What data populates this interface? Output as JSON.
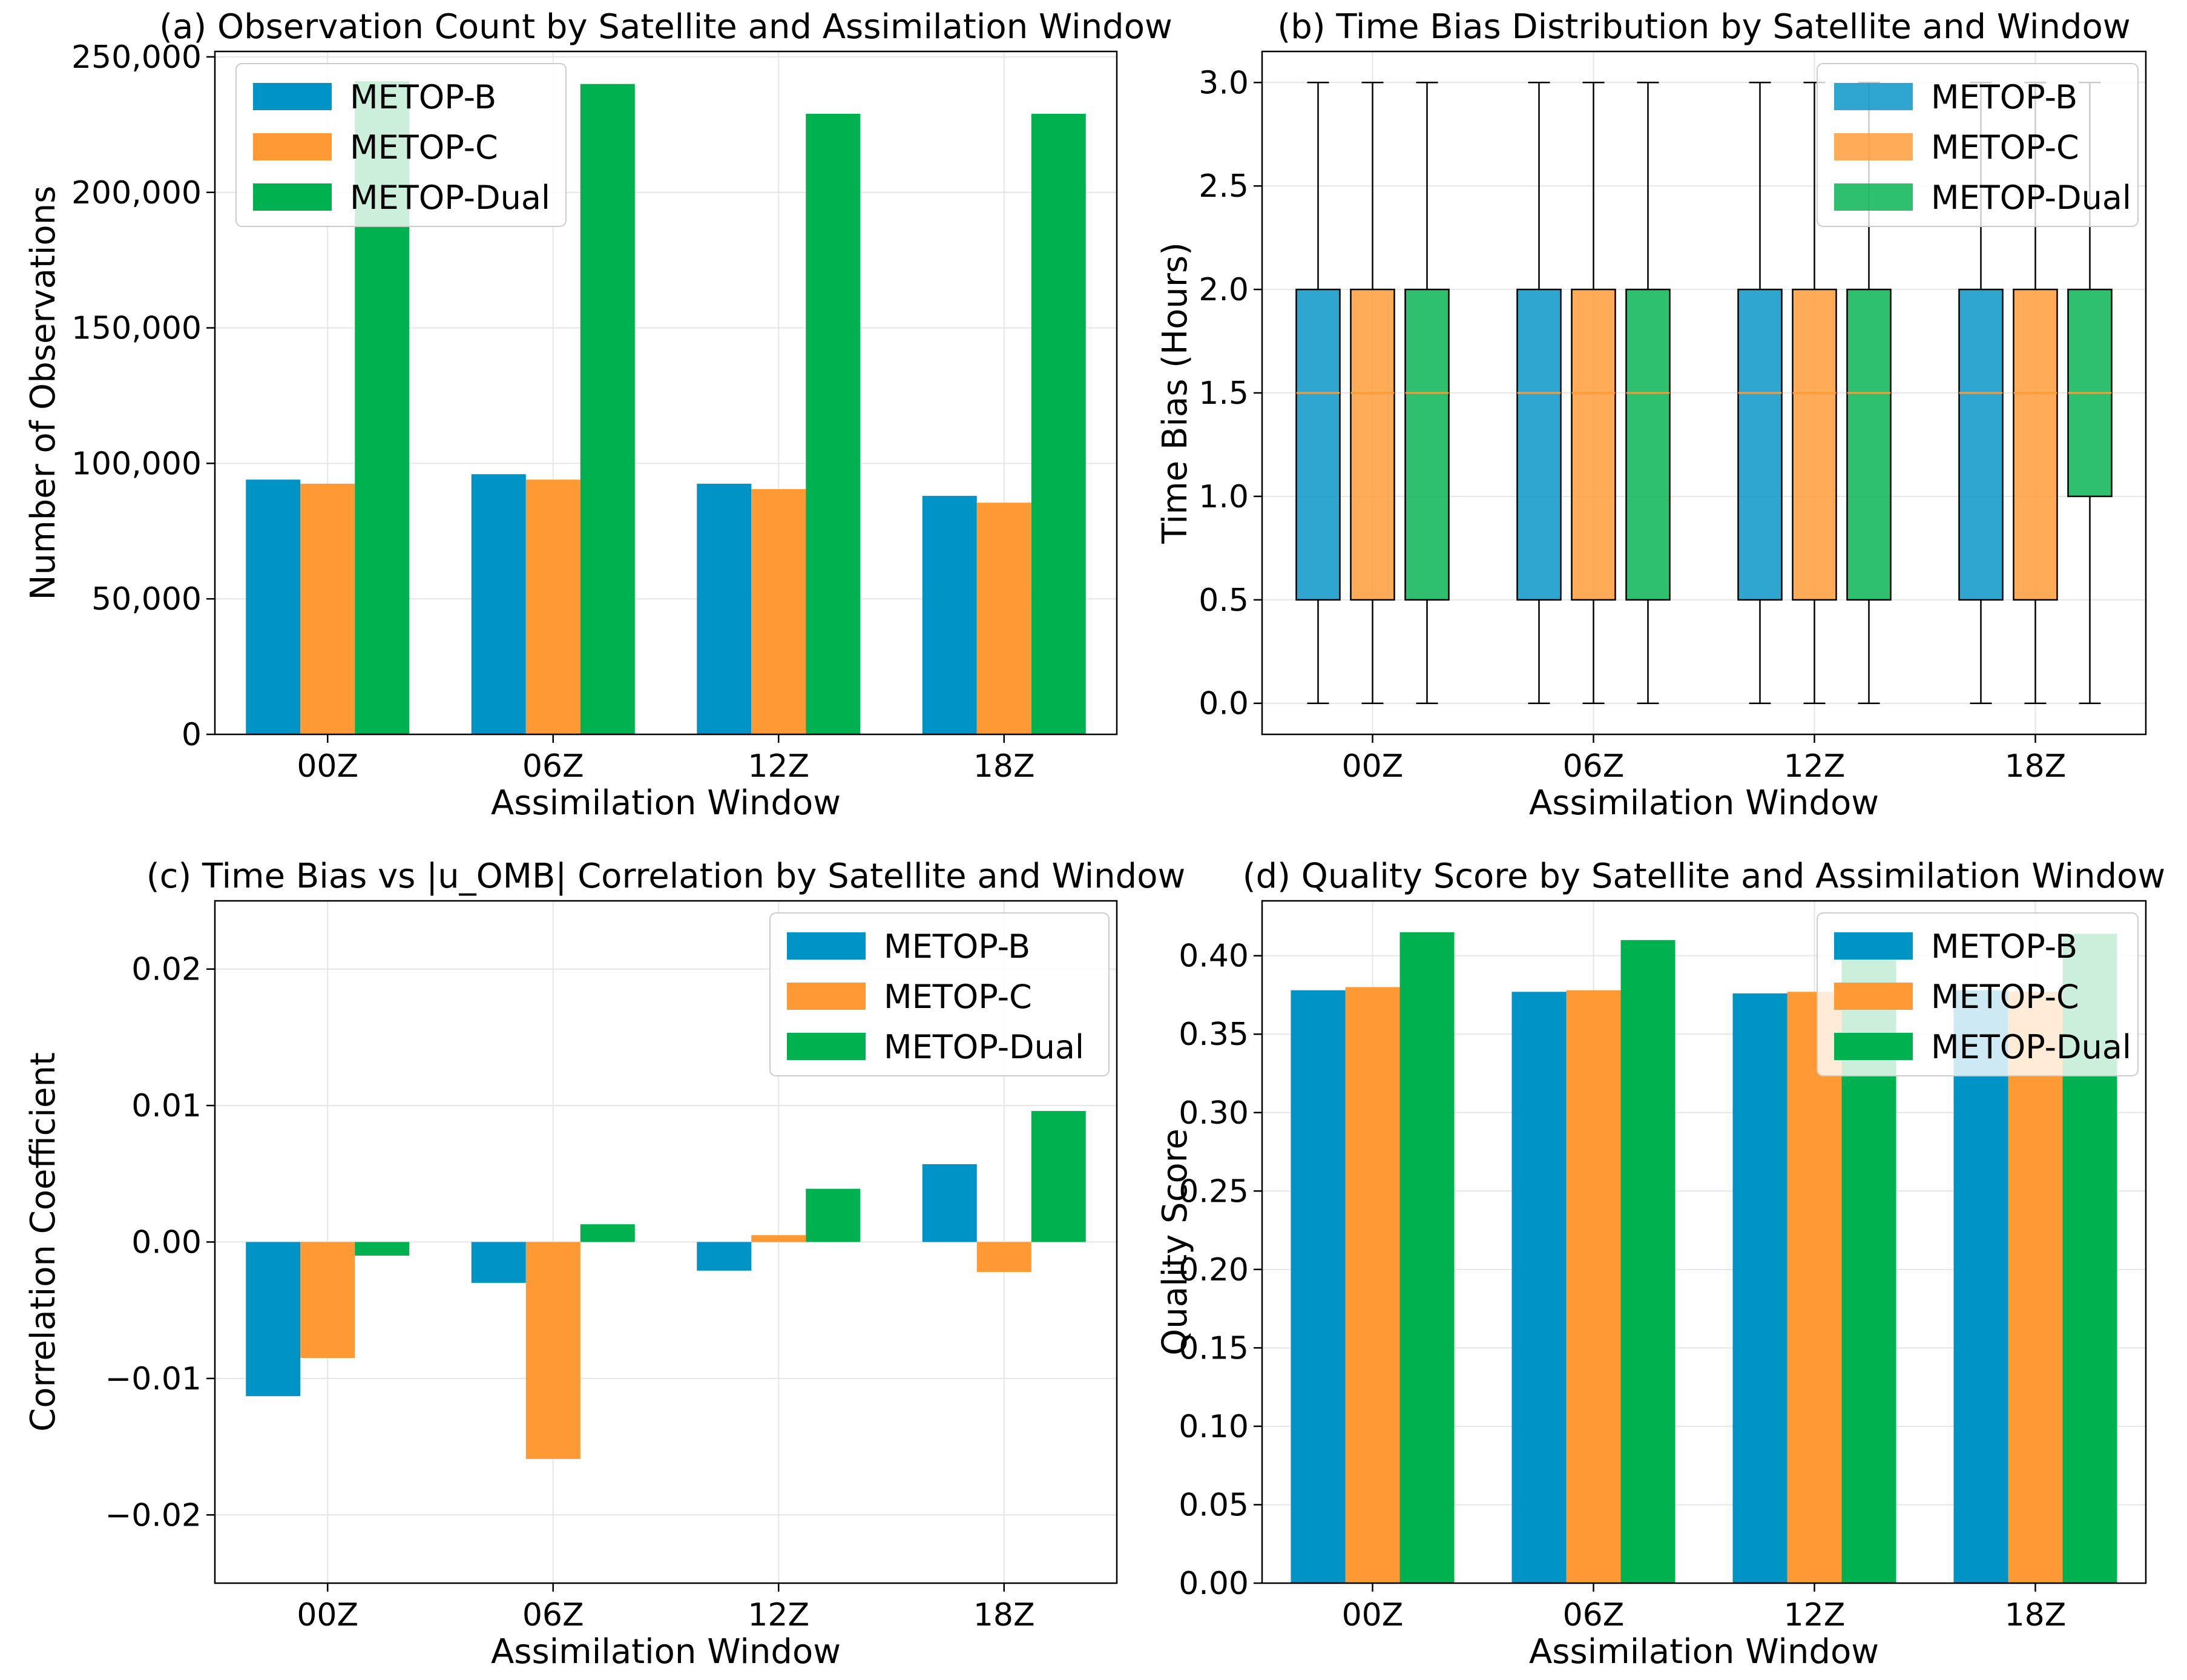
{
  "chart_data": [
    {
      "panel": "a",
      "type": "bar",
      "title": "(a) Observation Count by Satellite and Assimilation Window",
      "xlabel": "Assimilation Window",
      "ylabel": "Number of Observations",
      "categories": [
        "00Z",
        "06Z",
        "12Z",
        "18Z"
      ],
      "series": [
        {
          "name": "METOP-B",
          "values": [
            94000,
            96000,
            92500,
            88000
          ]
        },
        {
          "name": "METOP-C",
          "values": [
            92500,
            94000,
            90500,
            85500
          ]
        },
        {
          "name": "METOP-Dual",
          "values": [
            241000,
            240000,
            229000,
            229000
          ]
        }
      ],
      "ylim": [
        0,
        252000
      ],
      "yticks": [
        0,
        50000,
        100000,
        150000,
        200000,
        250000
      ],
      "ytick_labels": [
        "0",
        "50,000",
        "100,000",
        "150,000",
        "200,000",
        "250,000"
      ],
      "grid": true,
      "legend_position": "top-left"
    },
    {
      "panel": "b",
      "type": "box",
      "title": "(b) Time Bias Distribution by Satellite and Window",
      "xlabel": "Assimilation Window",
      "ylabel": "Time Bias (Hours)",
      "categories": [
        "00Z",
        "06Z",
        "12Z",
        "18Z"
      ],
      "series": [
        {
          "name": "METOP-B",
          "boxes": [
            {
              "min": 0.0,
              "q1": 0.5,
              "median": 1.5,
              "q3": 2.0,
              "max": 3.0
            },
            {
              "min": 0.0,
              "q1": 0.5,
              "median": 1.5,
              "q3": 2.0,
              "max": 3.0
            },
            {
              "min": 0.0,
              "q1": 0.5,
              "median": 1.5,
              "q3": 2.0,
              "max": 3.0
            },
            {
              "min": 0.0,
              "q1": 0.5,
              "median": 1.5,
              "q3": 2.0,
              "max": 3.0
            }
          ]
        },
        {
          "name": "METOP-C",
          "boxes": [
            {
              "min": 0.0,
              "q1": 0.5,
              "median": 1.5,
              "q3": 2.0,
              "max": 3.0
            },
            {
              "min": 0.0,
              "q1": 0.5,
              "median": 1.5,
              "q3": 2.0,
              "max": 3.0
            },
            {
              "min": 0.0,
              "q1": 0.5,
              "median": 1.5,
              "q3": 2.0,
              "max": 3.0
            },
            {
              "min": 0.0,
              "q1": 0.5,
              "median": 1.5,
              "q3": 2.0,
              "max": 3.0
            }
          ]
        },
        {
          "name": "METOP-Dual",
          "boxes": [
            {
              "min": 0.0,
              "q1": 0.5,
              "median": 1.5,
              "q3": 2.0,
              "max": 3.0
            },
            {
              "min": 0.0,
              "q1": 0.5,
              "median": 1.5,
              "q3": 2.0,
              "max": 3.0
            },
            {
              "min": 0.0,
              "q1": 0.5,
              "median": 1.5,
              "q3": 2.0,
              "max": 3.0
            },
            {
              "min": 0.0,
              "q1": 1.0,
              "median": 1.5,
              "q3": 2.0,
              "max": 3.0
            }
          ]
        }
      ],
      "ylim": [
        -0.15,
        3.15
      ],
      "yticks": [
        0.0,
        0.5,
        1.0,
        1.5,
        2.0,
        2.5,
        3.0
      ],
      "ytick_labels": [
        "0.0",
        "0.5",
        "1.0",
        "1.5",
        "2.0",
        "2.5",
        "3.0"
      ],
      "grid": true,
      "legend_position": "top-right"
    },
    {
      "panel": "c",
      "type": "bar",
      "title": "(c) Time Bias vs |u_OMB| Correlation by Satellite and Window",
      "xlabel": "Assimilation Window",
      "ylabel": "Correlation Coefficient",
      "categories": [
        "00Z",
        "06Z",
        "12Z",
        "18Z"
      ],
      "series": [
        {
          "name": "METOP-B",
          "values": [
            -0.0113,
            -0.003,
            -0.0021,
            0.0057
          ]
        },
        {
          "name": "METOP-C",
          "values": [
            -0.0085,
            -0.0159,
            0.0005,
            -0.0022
          ]
        },
        {
          "name": "METOP-Dual",
          "values": [
            -0.001,
            0.0013,
            0.0039,
            0.0096
          ]
        }
      ],
      "ylim": [
        -0.025,
        0.025
      ],
      "yticks": [
        -0.02,
        -0.01,
        0.0,
        0.01,
        0.02
      ],
      "ytick_labels": [
        "−0.02",
        "−0.01",
        "0.00",
        "0.01",
        "0.02"
      ],
      "grid": true,
      "legend_position": "top-right"
    },
    {
      "panel": "d",
      "type": "bar",
      "title": "(d) Quality Score by Satellite and Assimilation Window",
      "xlabel": "Assimilation Window",
      "ylabel": "Quality Score",
      "categories": [
        "00Z",
        "06Z",
        "12Z",
        "18Z"
      ],
      "series": [
        {
          "name": "METOP-B",
          "values": [
            0.378,
            0.377,
            0.376,
            0.378
          ]
        },
        {
          "name": "METOP-C",
          "values": [
            0.38,
            0.378,
            0.377,
            0.377
          ]
        },
        {
          "name": "METOP-Dual",
          "values": [
            0.415,
            0.41,
            0.413,
            0.414
          ]
        }
      ],
      "ylim": [
        0.0,
        0.435
      ],
      "yticks": [
        0.0,
        0.05,
        0.1,
        0.15,
        0.2,
        0.25,
        0.3,
        0.35,
        0.4
      ],
      "ytick_labels": [
        "0.00",
        "0.05",
        "0.10",
        "0.15",
        "0.20",
        "0.25",
        "0.30",
        "0.35",
        "0.40"
      ],
      "grid": true,
      "legend_position": "top-right"
    }
  ],
  "colors": {
    "METOP-B": "#0093c6",
    "METOP-C": "#ff9933",
    "METOP-Dual": "#00b14f",
    "median_line": "#ff9933",
    "grid": "#e6e6e6"
  }
}
